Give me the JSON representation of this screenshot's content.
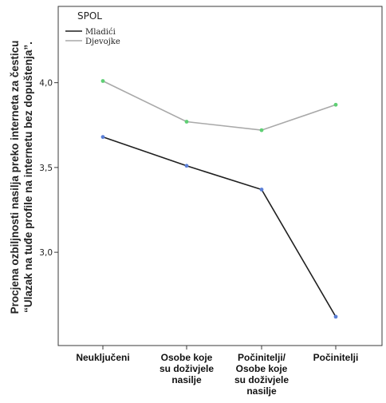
{
  "chart_data": {
    "type": "line",
    "ylabel_lines": [
      "Procjena ozbiljnosti nasilja preko interneta za česticu",
      "“Ulazak na tuđe profile na internetu bez dopuštenja”."
    ],
    "categories": [
      [
        "Neuključeni"
      ],
      [
        "Osobe koje",
        "su doživjele",
        "nasilje"
      ],
      [
        "Počinitelji/",
        "Osobe koje",
        "su doživjele",
        "nasilje"
      ],
      [
        "Počinitelji"
      ]
    ],
    "y_ticks": [
      {
        "value": 3.0,
        "label": "3,0"
      },
      {
        "value": 3.5,
        "label": "3,5"
      },
      {
        "value": 4.0,
        "label": "4,0"
      }
    ],
    "ylim": [
      2.45,
      4.45
    ],
    "legend": {
      "title": "SPOL",
      "position": "top-left"
    },
    "series": [
      {
        "name": "Mladići",
        "values": [
          3.68,
          3.51,
          3.37,
          2.62
        ],
        "line_color": "#1f1f1f",
        "marker_color": "#5b7fd6"
      },
      {
        "name": "Djevojke",
        "values": [
          4.01,
          3.77,
          3.72,
          3.87
        ],
        "line_color": "#a9a9a9",
        "marker_color": "#5fcf74"
      }
    ]
  }
}
